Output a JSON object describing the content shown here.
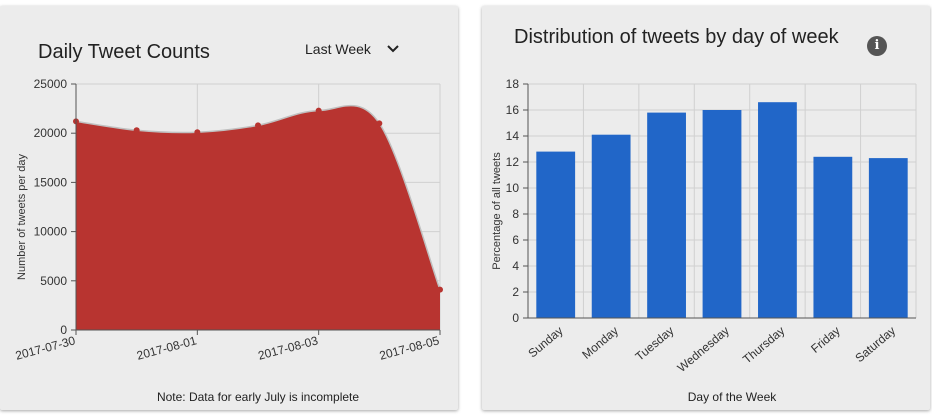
{
  "left_card": {
    "title": "Daily Tweet Counts",
    "dropdown_value": "Last Week",
    "note": "Note: Data for early July is incomplete"
  },
  "right_card": {
    "title": "Distribution of tweets by day of week",
    "info_label": "i"
  },
  "colors": {
    "area_fill": "#b83430",
    "area_line": "#c0c0c0",
    "bar_fill": "#2166c8"
  },
  "chart_data": [
    {
      "type": "area",
      "title": "Daily Tweet Counts",
      "xlabel": "",
      "ylabel": "Number of tweets per day",
      "x": [
        "2017-07-30",
        "2017-07-31",
        "2017-08-01",
        "2017-08-02",
        "2017-08-03",
        "2017-08-04",
        "2017-08-05"
      ],
      "xtick_labels": [
        "2017-07-30",
        "2017-08-01",
        "2017-08-03",
        "2017-08-05"
      ],
      "values": [
        21200,
        20300,
        20100,
        20800,
        22300,
        21000,
        4100
      ],
      "ylim": [
        0,
        25000
      ],
      "yticks": [
        0,
        5000,
        10000,
        15000,
        20000,
        25000
      ],
      "grid": true,
      "legend": "none"
    },
    {
      "type": "bar",
      "title": "Distribution of tweets by day of week",
      "xlabel": "Day of the Week",
      "ylabel": "Percentage of all tweets",
      "categories": [
        "Sunday",
        "Monday",
        "Tuesday",
        "Wednesday",
        "Thursday",
        "Friday",
        "Saturday"
      ],
      "values": [
        12.8,
        14.1,
        15.8,
        16.0,
        16.6,
        12.4,
        12.3
      ],
      "ylim": [
        0,
        18
      ],
      "yticks": [
        0,
        2,
        4,
        6,
        8,
        10,
        12,
        14,
        16,
        18
      ],
      "grid": true,
      "legend": "none"
    }
  ]
}
